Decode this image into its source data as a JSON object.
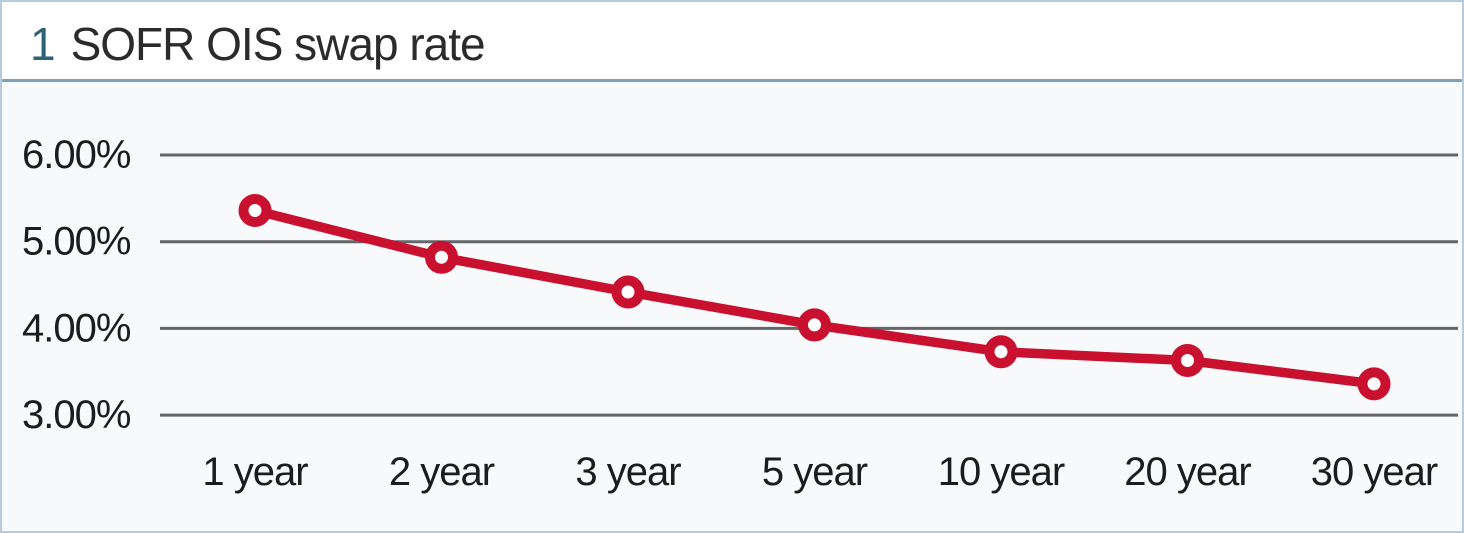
{
  "title": {
    "number": "1",
    "text": "SOFR OIS swap rate"
  },
  "colors": {
    "line": "#c9102f",
    "marker_fill": "#ffffff",
    "gridline": "#646669",
    "text": "#1c1c1c",
    "title_number": "#2e6277",
    "title_text": "#2b2b2b",
    "border": "#b8cbdc",
    "separator": "#7f9fbe",
    "chart_background": "#f7f9fb",
    "header_background": "#ffffff"
  },
  "chart_data": {
    "type": "line",
    "title": "1 SOFR OIS swap rate",
    "xlabel": "",
    "ylabel": "",
    "categories": [
      "1 year",
      "2 year",
      "3 year",
      "5 year",
      "10 year",
      "20 year",
      "30 year"
    ],
    "series": [
      {
        "name": "SOFR OIS swap rate",
        "color": "#c9102f",
        "values": [
          5.36,
          4.82,
          4.42,
          4.04,
          3.73,
          3.63,
          3.36
        ]
      }
    ],
    "y_ticks": [
      {
        "value": 6.0,
        "label": "6.00%"
      },
      {
        "value": 5.0,
        "label": "5.00%"
      },
      {
        "value": 4.0,
        "label": "4.00%"
      },
      {
        "value": 3.0,
        "label": "3.00%"
      }
    ],
    "ylim": [
      2.9,
      6.8
    ],
    "grid": "horizontal-only",
    "legend": "none",
    "marker": "open-circle"
  }
}
